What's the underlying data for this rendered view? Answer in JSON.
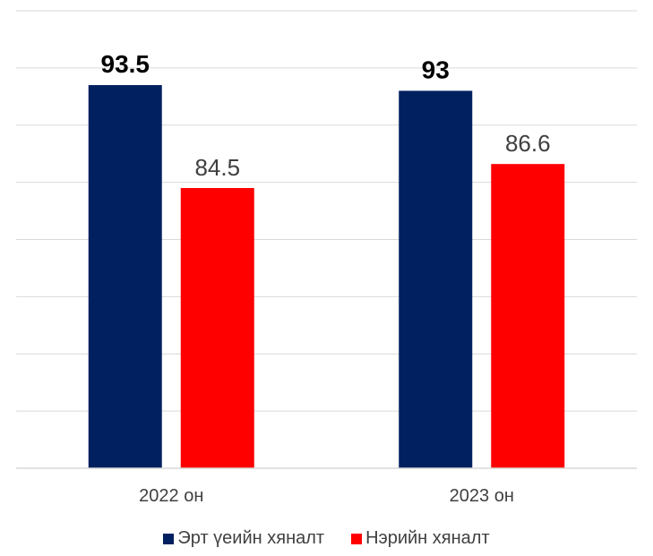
{
  "chart_data": {
    "type": "bar",
    "categories": [
      "2022 он",
      "2023 он"
    ],
    "series": [
      {
        "name": "Эрт үеийн хяналт",
        "values": [
          93.5,
          93
        ],
        "color": "#002060",
        "labels": [
          "93.5",
          "93"
        ],
        "label_style": "bold"
      },
      {
        "name": "Нэрийн хяналт",
        "values": [
          84.5,
          86.6
        ],
        "color": "#ff0000",
        "labels": [
          "84.5",
          "86.6"
        ],
        "label_style": "normal"
      }
    ],
    "ylim": [
      60,
      100
    ],
    "y_gridlines": [
      60,
      65,
      70,
      75,
      80,
      85,
      90,
      95,
      100
    ],
    "grid": true,
    "y_axis_labels_shown": false,
    "legend_position": "bottom",
    "gridline_color": "#d9d9d9",
    "text_color": "#404040"
  }
}
